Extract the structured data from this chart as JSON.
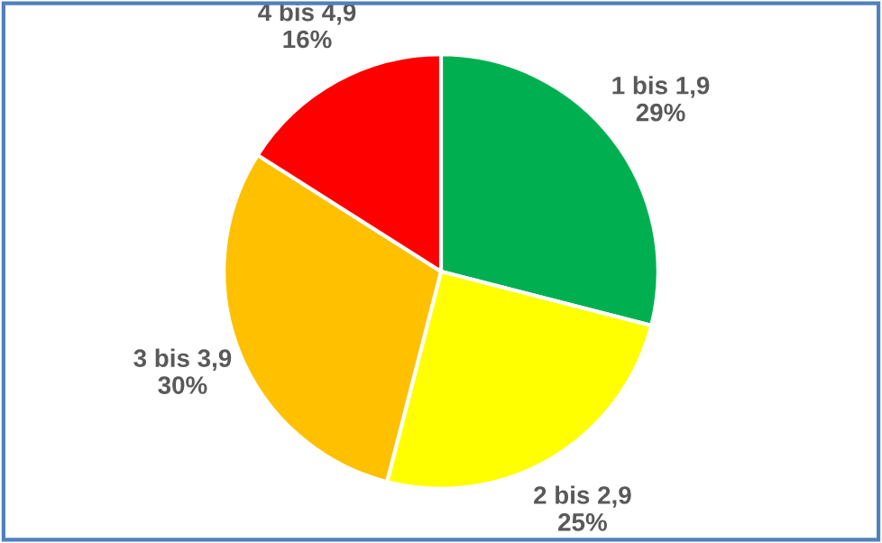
{
  "chart_data": {
    "type": "pie",
    "categories": [
      "1 bis 1,9",
      "2 bis 2,9",
      "3 bis 3,9",
      "4 bis 4,9"
    ],
    "values": [
      29,
      25,
      30,
      16
    ],
    "value_labels": [
      "29%",
      "25%",
      "30%",
      "16%"
    ],
    "colors": [
      "#00b050",
      "#ffff00",
      "#ffc000",
      "#ff0000"
    ],
    "legend": false
  }
}
